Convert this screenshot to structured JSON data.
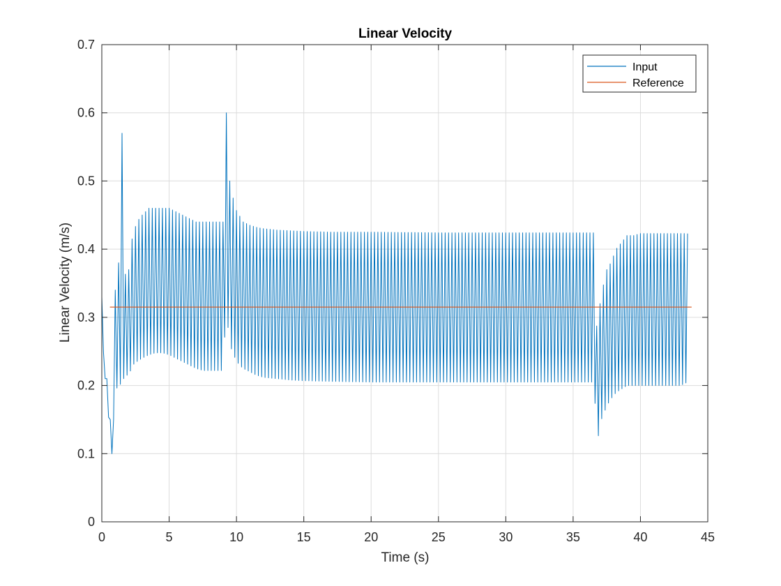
{
  "chart_data": {
    "type": "line",
    "title": "Linear Velocity",
    "xlabel": "Time (s)",
    "ylabel": "Linear Velocity (m/s)",
    "xlim": [
      0,
      45
    ],
    "ylim": [
      0,
      0.7
    ],
    "xticks": [
      0,
      5,
      10,
      15,
      20,
      25,
      30,
      35,
      40,
      45
    ],
    "yticks": [
      0,
      0.1,
      0.2,
      0.3,
      0.4,
      0.5,
      0.6,
      0.7
    ],
    "xtick_labels": [
      "0",
      "5",
      "10",
      "15",
      "20",
      "25",
      "30",
      "35",
      "40",
      "45"
    ],
    "ytick_labels": [
      "0",
      "0.1",
      "0.2",
      "0.3",
      "0.4",
      "0.5",
      "0.6",
      "0.7"
    ],
    "grid": true,
    "legend_position": "top-right",
    "series": [
      {
        "name": "Input",
        "color": "#0072BD",
        "description": "oscillating signal, period ~0.25 s",
        "x": [
          0,
          0.2,
          0.35,
          0.45,
          0.6,
          0.75,
          0.8,
          0.9,
          1.0,
          1.2,
          1.35,
          1.5,
          1.65,
          1.8,
          1.9,
          2.0,
          2.1,
          2.3,
          2.6,
          3.0,
          3.5,
          4.0,
          4.5,
          5.0,
          5.5,
          6.0,
          6.5,
          7.0,
          7.5,
          8.0,
          8.5,
          9.0,
          9.2,
          9.3,
          9.4,
          9.5,
          9.7,
          9.9,
          10.2,
          10.5,
          11.0,
          11.5,
          12.0,
          13.0,
          14.0,
          15.0,
          17.0,
          20.0,
          25.0,
          30.0,
          35.0,
          36.5,
          36.8,
          37.0,
          37.1,
          37.3,
          37.5,
          37.8,
          38.2,
          38.6,
          39.0,
          39.5,
          40.0,
          41.0,
          42.0,
          43.0,
          43.5
        ],
        "peaks": [
          0.33,
          0.2,
          0.23,
          0.15,
          0.16,
          0.1,
          0.27,
          0.15,
          0.34,
          0.38,
          0.38,
          0.57,
          0.37,
          0.36,
          0.37,
          0.37,
          0.4,
          0.42,
          0.44,
          0.45,
          0.46,
          0.46,
          0.46,
          0.46,
          0.455,
          0.45,
          0.445,
          0.44,
          0.44,
          0.44,
          0.44,
          0.44,
          0.6,
          0.6,
          0.54,
          0.5,
          0.48,
          0.46,
          0.45,
          0.44,
          0.435,
          0.432,
          0.43,
          0.428,
          0.427,
          0.426,
          0.425,
          0.425,
          0.424,
          0.424,
          0.424,
          0.424,
          0.26,
          0.32,
          0.31,
          0.36,
          0.37,
          0.38,
          0.4,
          0.41,
          0.42,
          0.42,
          0.423,
          0.423,
          0.423,
          0.423,
          0.423
        ],
        "troughs": [
          0.33,
          0.2,
          0.23,
          0.15,
          0.16,
          0.1,
          0.15,
          0.15,
          0.19,
          0.2,
          0.2,
          0.21,
          0.21,
          0.2,
          0.22,
          0.22,
          0.22,
          0.23,
          0.235,
          0.24,
          0.245,
          0.248,
          0.248,
          0.245,
          0.24,
          0.235,
          0.23,
          0.225,
          0.222,
          0.222,
          0.222,
          0.222,
          0.3,
          0.3,
          0.28,
          0.26,
          0.25,
          0.24,
          0.23,
          0.225,
          0.22,
          0.215,
          0.212,
          0.21,
          0.208,
          0.207,
          0.206,
          0.205,
          0.205,
          0.205,
          0.205,
          0.205,
          0.13,
          0.12,
          0.15,
          0.16,
          0.17,
          0.18,
          0.19,
          0.195,
          0.2,
          0.2,
          0.2,
          0.2,
          0.2,
          0.2,
          0.205
        ]
      },
      {
        "name": "Reference",
        "color": "#D95319",
        "x": [
          0.6,
          43.8
        ],
        "y": [
          0.315,
          0.315
        ]
      }
    ]
  }
}
